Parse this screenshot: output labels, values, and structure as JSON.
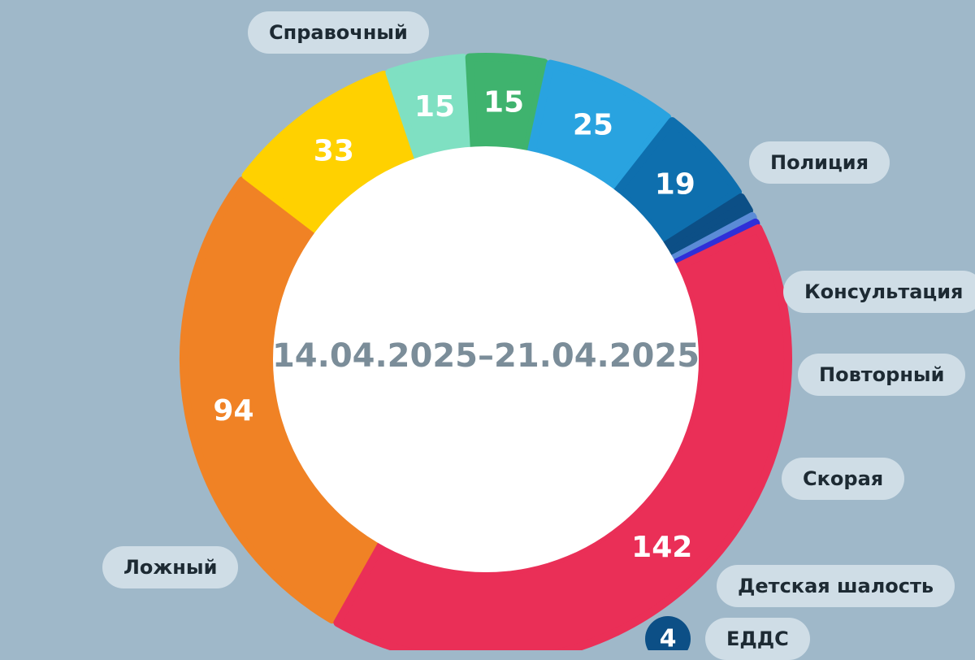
{
  "chart_data": {
    "type": "pie",
    "center_label": "14.04.2025–21.04.2025",
    "slices": [
      {
        "label": "Справочный",
        "value": 94,
        "value_text": "94",
        "color": "#f08225"
      },
      {
        "label": "Полиция",
        "value": 33,
        "value_text": "33",
        "color": "#ffd100"
      },
      {
        "label": "Консультация",
        "value": 15,
        "value_text": "15",
        "color": "#7fe0c2"
      },
      {
        "label": "Повторный",
        "value": 15,
        "value_text": "15",
        "color": "#3fb36e"
      },
      {
        "label": "Скорая",
        "value": 25,
        "value_text": "25",
        "color": "#29a3e0"
      },
      {
        "label": "Детская шалость",
        "value": 19,
        "value_text": "19",
        "color": "#0e6fae"
      },
      {
        "label": "ЕДДС",
        "value": 4,
        "value_text": "4",
        "color": "#0c4f86"
      },
      {
        "label": "",
        "value": 1.5,
        "value_text": "",
        "color": "#5b8bd6"
      },
      {
        "label": "",
        "value": 1,
        "value_text": "",
        "color": "#2f2fd8"
      },
      {
        "label": "Ложный",
        "value": 142,
        "value_text": "142",
        "color": "#ea2f57"
      }
    ]
  }
}
